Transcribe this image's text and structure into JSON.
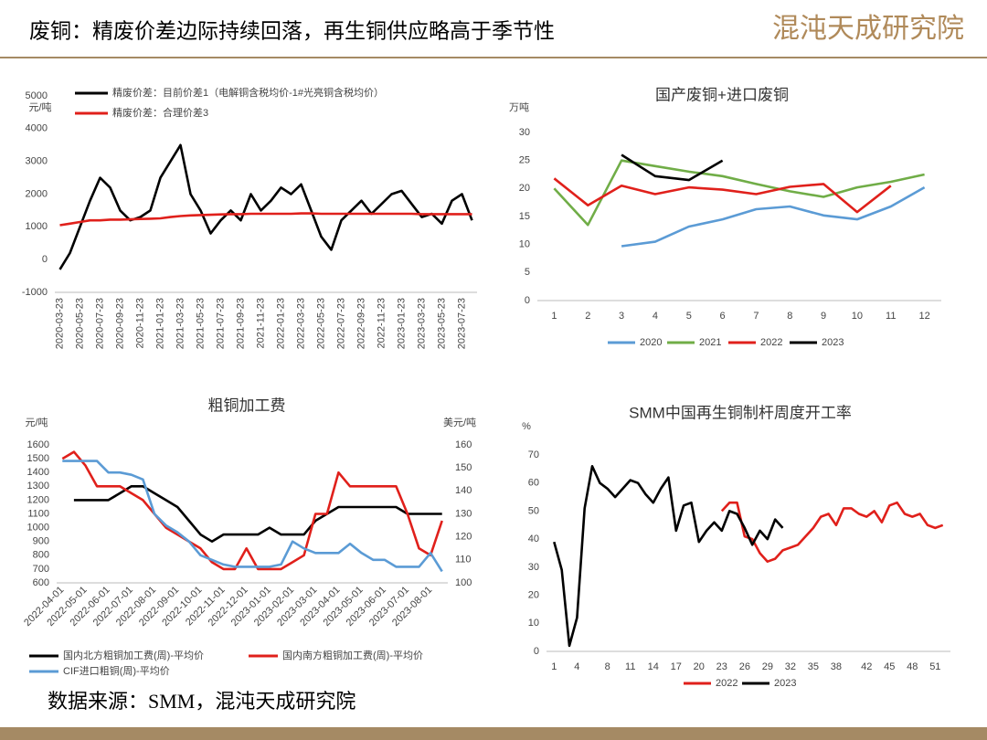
{
  "header": {
    "title": "废铜：精废价差边际持续回落，再生铜供应略高于季节性",
    "logo": "混沌天成研究院"
  },
  "chart_data": [
    {
      "type": "line",
      "ylabel": "元/吨",
      "categories": [
        "2020-03-23",
        null,
        "2020-05-23",
        null,
        "2020-07-23",
        null,
        "2020-09-23",
        null,
        "2020-11-23",
        null,
        "2021-01-23",
        null,
        "2021-03-23",
        null,
        "2021-05-23",
        null,
        "2021-07-23",
        null,
        "2021-09-23",
        null,
        "2021-11-23",
        null,
        "2022-01-23",
        null,
        "2022-03-23",
        null,
        "2022-05-23",
        null,
        "2022-07-23",
        null,
        "2022-09-23",
        null,
        "2022-11-23",
        null,
        "2023-01-23",
        null,
        "2023-03-23",
        null,
        "2023-05-23",
        null,
        "2023-07-23",
        null
      ],
      "series": [
        {
          "name": "精废价差：目前价差1（电解铜含税均价-1#光亮铜含税均价）",
          "color": "#000000",
          "values": [
            -300,
            200,
            1000,
            1800,
            2500,
            2200,
            1500,
            1200,
            1300,
            1500,
            2500,
            3000,
            3500,
            2000,
            1500,
            800,
            1200,
            1500,
            1200,
            2000,
            1500,
            1800,
            2200,
            2000,
            2300,
            1500,
            700,
            300,
            1200,
            1500,
            1800,
            1400,
            1700,
            2000,
            2100,
            1700,
            1300,
            1400,
            1100,
            1800,
            2000,
            1200
          ]
        },
        {
          "name": "精废价差：合理价差3",
          "color": "#e0201b",
          "values": [
            1050,
            1100,
            1150,
            1200,
            1200,
            1220,
            1220,
            1230,
            1240,
            1250,
            1260,
            1300,
            1330,
            1350,
            1360,
            1370,
            1380,
            1390,
            1390,
            1400,
            1400,
            1400,
            1400,
            1400,
            1410,
            1410,
            1400,
            1400,
            1400,
            1400,
            1400,
            1400,
            1400,
            1400,
            1400,
            1400,
            1390,
            1390,
            1390,
            1390,
            1390,
            1390
          ]
        }
      ],
      "ylim": [
        -1000,
        5000
      ],
      "yticks": [
        -1000,
        0,
        1000,
        2000,
        3000,
        4000,
        5000
      ]
    },
    {
      "type": "line",
      "title": "国产废铜+进口废铜",
      "ylabel": "万吨",
      "categories": [
        "1",
        "2",
        "3",
        "4",
        "5",
        "6",
        "7",
        "8",
        "9",
        "10",
        "11",
        "12"
      ],
      "series": [
        {
          "name": "2020",
          "color": "#5b9bd5",
          "values": [
            null,
            null,
            9.7,
            10.5,
            13.2,
            14.5,
            16.3,
            16.8,
            15.2,
            14.5,
            16.8,
            20.2
          ]
        },
        {
          "name": "2021",
          "color": "#70ad47",
          "values": [
            20,
            13.5,
            25,
            24,
            23,
            22.2,
            20.8,
            19.5,
            18.5,
            20.2,
            21.2,
            22.5
          ]
        },
        {
          "name": "2022",
          "color": "#e0201b",
          "values": [
            21.8,
            17,
            20.5,
            19,
            20.2,
            19.8,
            19,
            20.3,
            20.8,
            15.8,
            20.5,
            null
          ]
        },
        {
          "name": "2023",
          "color": "#000000",
          "values": [
            null,
            null,
            26,
            22.2,
            21.5,
            25,
            null,
            null,
            null,
            null,
            null,
            null
          ]
        }
      ],
      "ylim": [
        0,
        30
      ],
      "yticks": [
        0,
        5,
        10,
        15,
        20,
        25,
        30
      ]
    },
    {
      "type": "line",
      "title": "粗铜加工费",
      "ylabel": "元/吨",
      "y2label": "美元/吨",
      "categories": [
        "2022-04-01",
        null,
        "2022-05-01",
        null,
        "2022-06-01",
        null,
        "2022-07-01",
        null,
        "2022-08-01",
        null,
        "2022-09-01",
        null,
        "2022-10-01",
        null,
        "2022-11-01",
        null,
        "2022-12-01",
        null,
        "2023-01-01",
        null,
        "2023-02-01",
        null,
        "2023-03-01",
        null,
        "2023-04-01",
        null,
        "2023-05-01",
        null,
        "2023-06-01",
        null,
        "2023-07-01",
        null,
        "2023-08-01",
        null
      ],
      "series": [
        {
          "name": "国内北方粗铜加工费(周)-平均价",
          "color": "#000000",
          "values": [
            null,
            1200,
            1200,
            1200,
            1200,
            1250,
            1300,
            1300,
            1250,
            1200,
            1150,
            1050,
            950,
            900,
            950,
            950,
            950,
            950,
            1000,
            950,
            950,
            950,
            1050,
            1100,
            1150,
            1150,
            1150,
            1150,
            1150,
            1150,
            1100,
            1100,
            1100,
            1100
          ]
        },
        {
          "name": "国内南方粗铜加工费(周)-平均价",
          "color": "#e0201b",
          "values": [
            1500,
            1550,
            1450,
            1300,
            1300,
            1300,
            1250,
            1200,
            1100,
            1000,
            950,
            900,
            850,
            750,
            700,
            700,
            850,
            700,
            700,
            700,
            750,
            800,
            1100,
            1100,
            1400,
            1300,
            1300,
            1300,
            1300,
            1300,
            1100,
            850,
            800,
            1050
          ]
        },
        {
          "name": "CIF进口粗铜(周)-平均价",
          "color": "#5b9bd5",
          "axis": "y2",
          "values": [
            153,
            153,
            153,
            153,
            148,
            148,
            147,
            145,
            130,
            125,
            122,
            118,
            112,
            110,
            108,
            107,
            107,
            107,
            107,
            108,
            118,
            115,
            113,
            113,
            113,
            117,
            113,
            110,
            110,
            107,
            107,
            107,
            113,
            105
          ]
        }
      ],
      "ylim": [
        600,
        1600
      ],
      "yticks": [
        600,
        700,
        800,
        900,
        1000,
        1100,
        1200,
        1300,
        1400,
        1500,
        1600
      ],
      "y2lim": [
        100,
        160
      ],
      "y2ticks": [
        100,
        110,
        120,
        130,
        140,
        150,
        160
      ]
    },
    {
      "type": "line",
      "title": "SMM中国再生铜制杆周度开工率",
      "ylabel": "%",
      "x": [
        1,
        2,
        3,
        4,
        5,
        6,
        7,
        8,
        9,
        10,
        11,
        12,
        13,
        14,
        15,
        16,
        17,
        18,
        19,
        20,
        21,
        22,
        23,
        24,
        25,
        26,
        27,
        28,
        29,
        30,
        31,
        32,
        33,
        34,
        35,
        36,
        37,
        38,
        39,
        40,
        41,
        42,
        43,
        44,
        45,
        46,
        47,
        48,
        49,
        50,
        51,
        52
      ],
      "series": [
        {
          "name": "2022",
          "color": "#e0201b",
          "values": [
            null,
            null,
            null,
            null,
            null,
            null,
            null,
            null,
            null,
            null,
            null,
            null,
            null,
            null,
            null,
            null,
            null,
            null,
            null,
            null,
            null,
            null,
            50,
            53,
            53,
            41,
            40,
            35,
            32,
            33,
            36,
            37,
            38,
            41,
            44,
            48,
            49,
            45,
            51,
            51,
            49,
            48,
            50,
            46,
            52,
            53,
            49,
            48,
            49,
            45,
            44,
            45
          ]
        },
        {
          "name": "2023",
          "color": "#000000",
          "values": [
            39,
            29,
            2,
            12,
            51,
            66,
            60,
            58,
            55,
            58,
            61,
            60,
            56,
            53,
            58,
            62,
            43,
            52,
            53,
            39,
            43,
            46,
            43,
            50,
            49,
            44,
            38,
            43,
            40,
            47,
            44,
            null,
            null,
            null,
            null,
            null,
            null,
            null,
            null,
            null,
            null,
            null,
            null,
            null,
            null,
            null,
            null,
            null,
            null,
            null,
            null,
            null
          ]
        }
      ],
      "xlim": [
        0,
        53
      ],
      "xticks": [
        1,
        4,
        8,
        11,
        14,
        17,
        20,
        23,
        26,
        29,
        32,
        35,
        38,
        42,
        45,
        48,
        51
      ],
      "ylim": [
        0,
        70
      ],
      "yticks": [
        0,
        10,
        20,
        30,
        40,
        50,
        60,
        70
      ]
    }
  ],
  "footer": {
    "source": "数据来源：SMM，混沌天成研究院"
  }
}
